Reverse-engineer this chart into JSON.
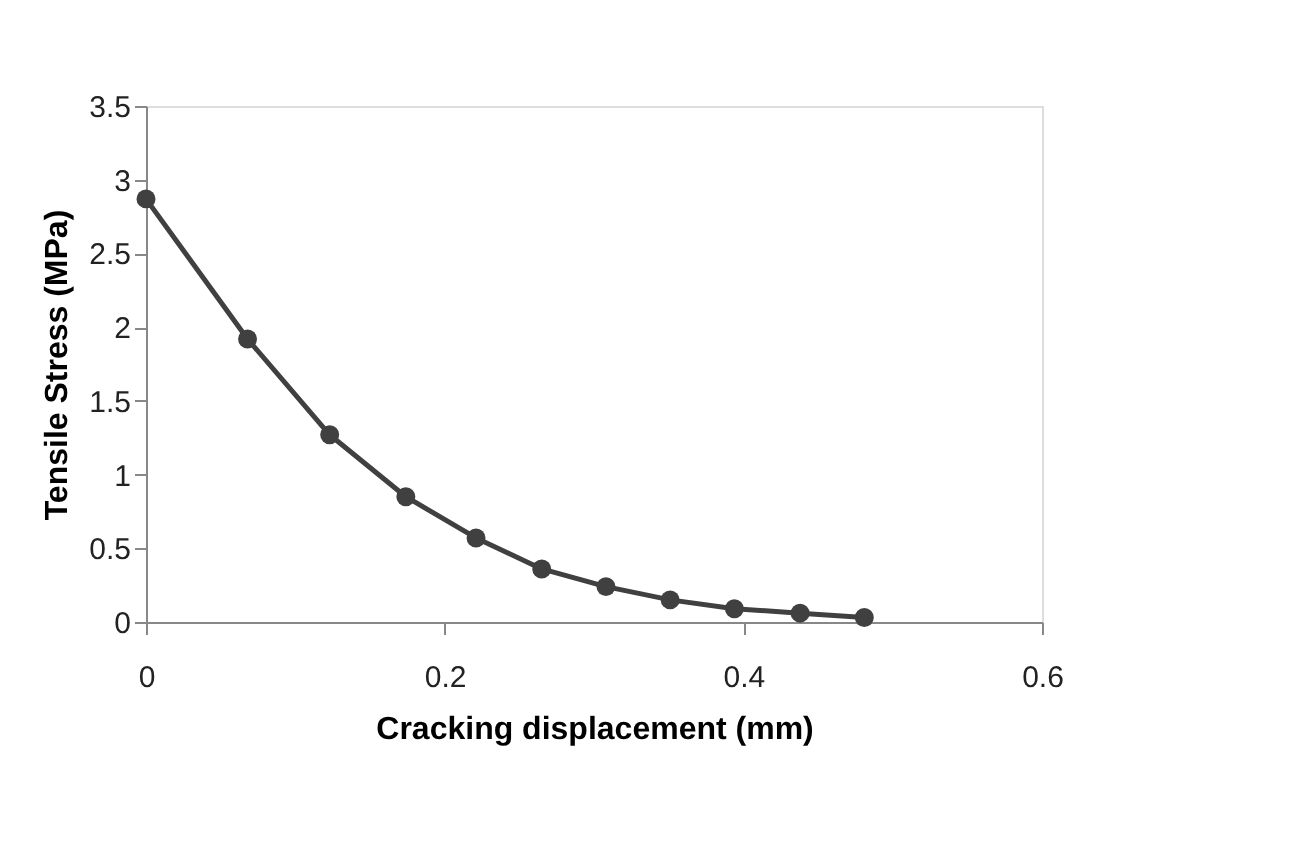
{
  "chart_data": {
    "type": "line",
    "xlabel": "Cracking displacement (mm)",
    "ylabel": "Tensile Stress (MPa)",
    "x": [
      0,
      0.068,
      0.123,
      0.174,
      0.221,
      0.265,
      0.308,
      0.351,
      0.394,
      0.438,
      0.481
    ],
    "series": [
      {
        "color": "#404040",
        "values": [
          2.87,
          1.92,
          1.27,
          0.85,
          0.57,
          0.36,
          0.24,
          0.15,
          0.09,
          0.06,
          0.03
        ]
      }
    ],
    "xlim": [
      0,
      0.6
    ],
    "xticks": [
      0,
      0.2,
      0.4,
      0.6
    ],
    "ylim": [
      0,
      3.5
    ],
    "yticks": [
      0,
      0.5,
      1,
      1.5,
      2,
      2.5,
      3,
      3.5
    ],
    "marker": "circle",
    "line_style": "solid",
    "grid": false,
    "legend": false
  }
}
